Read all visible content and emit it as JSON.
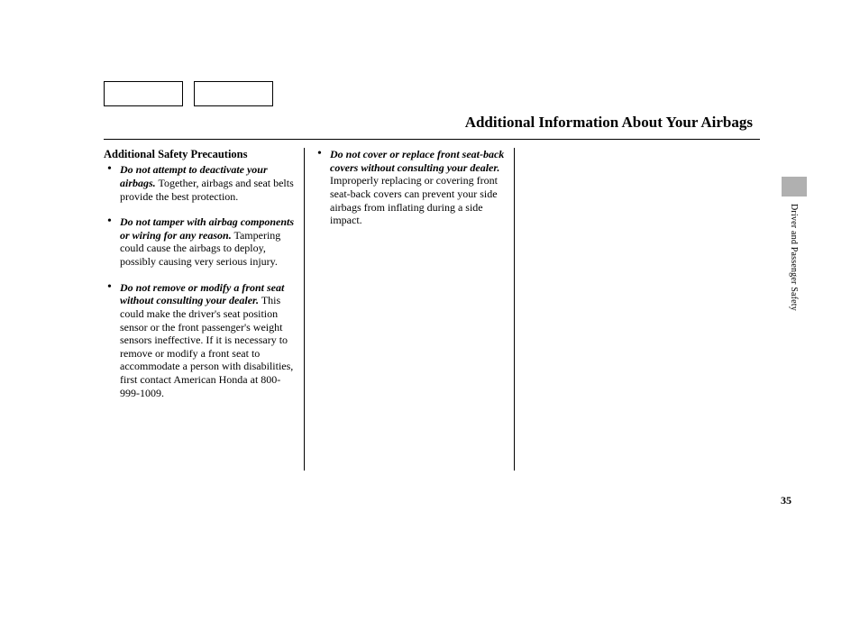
{
  "header": {
    "title": "Additional Information About Your Airbags"
  },
  "side": {
    "tab_label": "Driver and Passenger Safety"
  },
  "page_number": "35",
  "col1": {
    "heading": "Additional Safety Precautions",
    "items": [
      {
        "lead": "Do not attempt to deactivate your airbags.",
        "rest": " Together, airbags and seat belts provide the best protection."
      },
      {
        "lead": "Do not tamper with airbag components or wiring for any reason.",
        "rest": " Tampering could cause the airbags to deploy, possibly causing very serious injury."
      },
      {
        "lead": "Do not remove or modify a front seat without consulting your dealer.",
        "rest": " This could make the driver's seat position sensor or the front passenger's weight sensors ineffective. If it is necessary to remove or modify a front seat to accommodate a person with disabilities, first contact American Honda at 800-999-1009."
      }
    ]
  },
  "col2": {
    "items": [
      {
        "lead": "Do not cover or replace front seat-back covers without consulting your dealer.",
        "rest": " Improperly replacing or covering front seat-back covers can prevent your side airbags from inflating during a side impact."
      }
    ]
  }
}
